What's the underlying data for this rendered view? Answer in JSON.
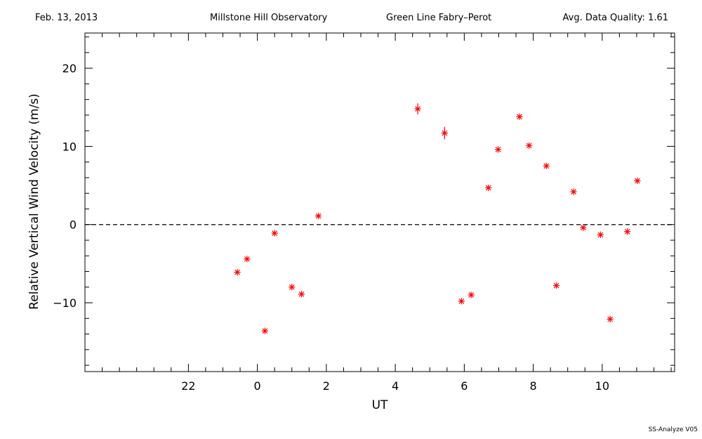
{
  "header": {
    "date": "Feb. 13, 2013",
    "observatory": "Millstone Hill Observatory",
    "instrument": "Green Line Fabry–Perot",
    "quality": "Avg. Data Quality: 1.61"
  },
  "footer": "SS-Analyze V05",
  "chart_data": {
    "type": "scatter",
    "xlabel": "UT",
    "ylabel": "Relative Vertical Wind Velocity (m/s)",
    "xlim": [
      -5,
      12.1
    ],
    "ylim": [
      -18.8,
      24.5
    ],
    "x_major_ticks": [
      -2,
      0,
      2,
      4,
      6,
      8,
      10
    ],
    "x_tick_labels": [
      "22",
      "0",
      "2",
      "4",
      "6",
      "8",
      "10"
    ],
    "y_major_ticks": [
      -10,
      0,
      10,
      20
    ],
    "y_tick_labels": [
      "−10",
      "0",
      "10",
      "20"
    ],
    "reference_line": {
      "y": 0,
      "style": "dashed"
    },
    "marker": "asterisk",
    "marker_color": "#ff0000",
    "points": [
      {
        "x": -0.58,
        "y": -6.1
      },
      {
        "x": -0.3,
        "y": -4.4
      },
      {
        "x": 0.22,
        "y": -13.6
      },
      {
        "x": 0.5,
        "y": -1.1
      },
      {
        "x": 1.0,
        "y": -8.0
      },
      {
        "x": 1.28,
        "y": -8.9
      },
      {
        "x": 1.77,
        "y": 1.1
      },
      {
        "x": 4.65,
        "y": 14.8,
        "err": 0.7
      },
      {
        "x": 5.43,
        "y": 11.7,
        "err": 0.8
      },
      {
        "x": 5.92,
        "y": -9.8
      },
      {
        "x": 6.2,
        "y": -9.0
      },
      {
        "x": 6.7,
        "y": 4.7
      },
      {
        "x": 6.98,
        "y": 9.6
      },
      {
        "x": 7.6,
        "y": 13.8
      },
      {
        "x": 7.88,
        "y": 10.1
      },
      {
        "x": 8.38,
        "y": 7.5
      },
      {
        "x": 8.67,
        "y": -7.8
      },
      {
        "x": 9.17,
        "y": 4.2
      },
      {
        "x": 9.45,
        "y": -0.4
      },
      {
        "x": 9.95,
        "y": -1.3
      },
      {
        "x": 10.23,
        "y": -12.1
      },
      {
        "x": 10.73,
        "y": -0.9
      },
      {
        "x": 11.02,
        "y": 5.6
      }
    ]
  }
}
